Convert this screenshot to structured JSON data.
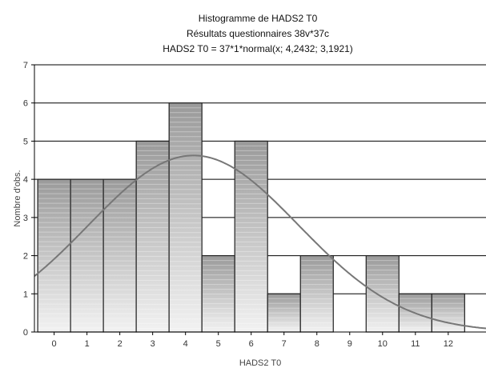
{
  "chart_data": {
    "type": "bar",
    "title_lines": [
      "Histogramme de HADS2 T0",
      "Résultats questionnaires 38v*37c",
      "HADS2 T0 = 37*1*normal(x; 4,2432; 3,1921)"
    ],
    "xlabel": "HADS2 T0",
    "ylabel": "Nombre d'obs.",
    "categories": [
      "0",
      "1",
      "2",
      "3",
      "4",
      "5",
      "6",
      "7",
      "8",
      "9",
      "10",
      "11",
      "12"
    ],
    "values": [
      4,
      4,
      4,
      5,
      6,
      2,
      5,
      1,
      2,
      0,
      2,
      1,
      1
    ],
    "ylim": [
      0,
      7
    ],
    "yticks": [
      "0",
      "1",
      "2",
      "3",
      "4",
      "5",
      "6",
      "7"
    ],
    "grid": true,
    "curve": {
      "type": "normal",
      "n": 37,
      "binwidth": 1,
      "mean": 4.2432,
      "sd": 3.1921
    },
    "colors": {
      "bar_top": "#9a9a9a",
      "bar_bottom": "#f2f2f2",
      "bar_stroke": "#222222",
      "curve": "#777777",
      "grid": "#000000"
    }
  }
}
